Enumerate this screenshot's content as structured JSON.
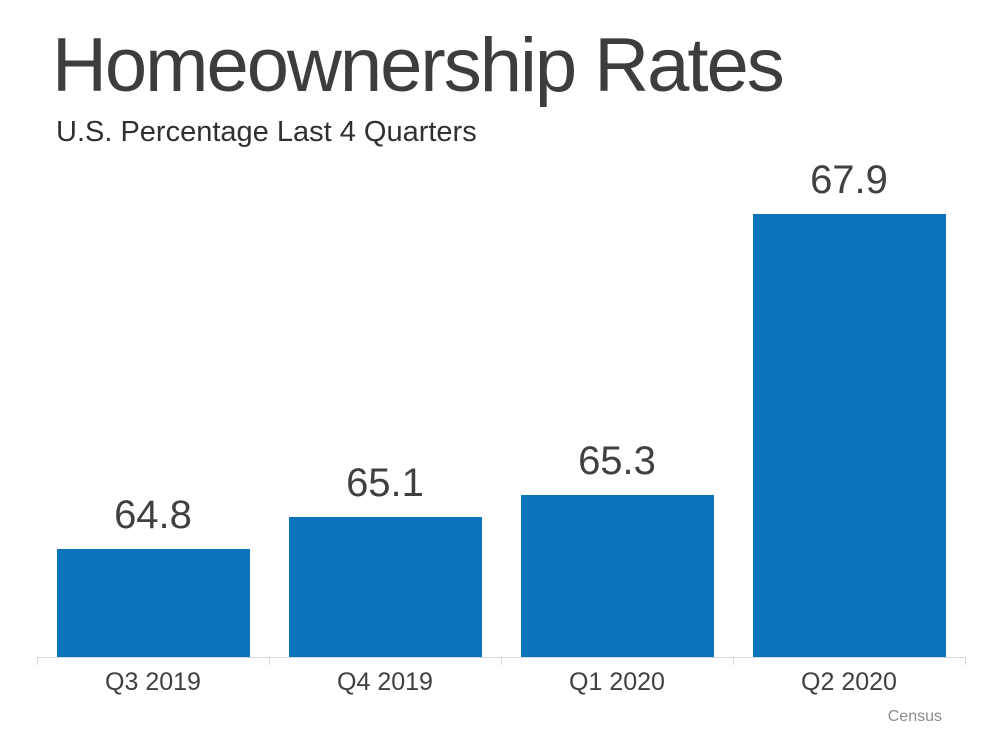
{
  "header": {
    "title": "Homeownership Rates",
    "subtitle": "U.S. Percentage Last 4 Quarters"
  },
  "source_note": "Census",
  "chart_data": {
    "type": "bar",
    "title": "Homeownership Rates",
    "subtitle": "U.S. Percentage Last 4 Quarters",
    "categories": [
      "Q3 2019",
      "Q4 2019",
      "Q1 2020",
      "Q2 2020"
    ],
    "values": [
      64.8,
      65.1,
      65.3,
      67.9
    ],
    "value_labels": [
      "64.8",
      "65.1",
      "65.3",
      "67.9"
    ],
    "xlabel": "",
    "ylabel": "",
    "ylim": [
      63.8,
      68.4
    ],
    "grid": false,
    "legend": false,
    "bar_color": "#0b72bc",
    "value_label_color": "#404040",
    "tick_label_color": "#404040",
    "axis_line_color": "#d9d9d9",
    "source_note": "Census"
  }
}
